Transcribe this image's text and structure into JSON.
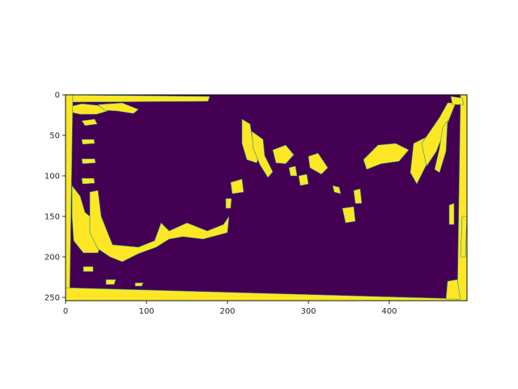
{
  "chart_data": {
    "type": "heatmap",
    "title": "",
    "xlabel": "",
    "ylabel": "",
    "xlim": [
      0,
      496
    ],
    "ylim": [
      254,
      0
    ],
    "x_ticks": [
      0,
      100,
      200,
      300,
      400
    ],
    "y_ticks": [
      0,
      50,
      100,
      150,
      200,
      250
    ],
    "colormap": "viridis",
    "background_color": "#440154",
    "mask_color": "#fde725",
    "edge_color": "#21918c",
    "grid": false,
    "legend": "none",
    "regions": [
      {
        "kind": "band",
        "points": [
          [
            0,
            0
          ],
          [
            178,
            2
          ],
          [
            176,
            8
          ],
          [
            0,
            9
          ]
        ]
      },
      {
        "kind": "band",
        "points": [
          [
            0,
            0
          ],
          [
            9,
            0
          ],
          [
            5,
            254
          ],
          [
            0,
            254
          ]
        ]
      },
      {
        "kind": "band",
        "points": [
          [
            0,
            238
          ],
          [
            496,
            252
          ],
          [
            496,
            254
          ],
          [
            0,
            254
          ]
        ]
      },
      {
        "kind": "band",
        "points": [
          [
            488,
            0
          ],
          [
            496,
            0
          ],
          [
            496,
            254
          ],
          [
            484,
            254
          ]
        ]
      },
      {
        "kind": "blob",
        "points": [
          [
            8,
            14
          ],
          [
            20,
            11
          ],
          [
            40,
            13
          ],
          [
            52,
            20
          ],
          [
            38,
            24
          ],
          [
            18,
            24
          ],
          [
            9,
            22
          ]
        ]
      },
      {
        "kind": "blob",
        "points": [
          [
            40,
            12
          ],
          [
            70,
            10
          ],
          [
            90,
            18
          ],
          [
            84,
            23
          ],
          [
            64,
            20
          ],
          [
            48,
            19
          ]
        ]
      },
      {
        "kind": "blob",
        "points": [
          [
            20,
            32
          ],
          [
            36,
            30
          ],
          [
            39,
            36
          ],
          [
            24,
            38
          ]
        ]
      },
      {
        "kind": "blob",
        "points": [
          [
            20,
            55
          ],
          [
            35,
            55
          ],
          [
            36,
            60
          ],
          [
            21,
            61
          ]
        ]
      },
      {
        "kind": "blob",
        "points": [
          [
            20,
            79
          ],
          [
            36,
            79
          ],
          [
            37,
            84
          ],
          [
            21,
            85
          ]
        ]
      },
      {
        "kind": "blob",
        "points": [
          [
            20,
            103
          ],
          [
            35,
            103
          ],
          [
            36,
            109
          ],
          [
            21,
            110
          ]
        ]
      },
      {
        "kind": "blob",
        "points": [
          [
            8,
            112
          ],
          [
            18,
            125
          ],
          [
            24,
            145
          ],
          [
            36,
            155
          ],
          [
            45,
            180
          ],
          [
            40,
            195
          ],
          [
            22,
            195
          ],
          [
            10,
            180
          ],
          [
            8,
            150
          ]
        ]
      },
      {
        "kind": "blob",
        "points": [
          [
            30,
            120
          ],
          [
            40,
            118
          ],
          [
            44,
            150
          ],
          [
            58,
            185
          ],
          [
            90,
            188
          ],
          [
            110,
            180
          ],
          [
            118,
            158
          ],
          [
            128,
            168
          ],
          [
            150,
            158
          ],
          [
            175,
            168
          ],
          [
            195,
            160
          ],
          [
            202,
            150
          ],
          [
            200,
            170
          ],
          [
            170,
            178
          ],
          [
            145,
            175
          ],
          [
            128,
            178
          ],
          [
            112,
            188
          ],
          [
            90,
            196
          ],
          [
            70,
            206
          ],
          [
            55,
            200
          ],
          [
            40,
            190
          ],
          [
            30,
            170
          ]
        ]
      },
      {
        "kind": "blob",
        "points": [
          [
            198,
            128
          ],
          [
            205,
            128
          ],
          [
            204,
            140
          ],
          [
            198,
            140
          ]
        ]
      },
      {
        "kind": "blob",
        "points": [
          [
            204,
            108
          ],
          [
            218,
            104
          ],
          [
            220,
            120
          ],
          [
            206,
            122
          ]
        ]
      },
      {
        "kind": "blob",
        "points": [
          [
            218,
            30
          ],
          [
            228,
            36
          ],
          [
            232,
            62
          ],
          [
            242,
            70
          ],
          [
            236,
            84
          ],
          [
            224,
            80
          ],
          [
            218,
            60
          ]
        ]
      },
      {
        "kind": "blob",
        "points": [
          [
            230,
            45
          ],
          [
            244,
            55
          ],
          [
            246,
            75
          ],
          [
            256,
            95
          ],
          [
            250,
            102
          ],
          [
            240,
            86
          ],
          [
            232,
            66
          ]
        ]
      },
      {
        "kind": "blob",
        "points": [
          [
            256,
            68
          ],
          [
            272,
            62
          ],
          [
            282,
            74
          ],
          [
            272,
            85
          ],
          [
            260,
            84
          ]
        ]
      },
      {
        "kind": "blob",
        "points": [
          [
            276,
            90
          ],
          [
            284,
            88
          ],
          [
            286,
            100
          ],
          [
            278,
            100
          ]
        ]
      },
      {
        "kind": "blob",
        "points": [
          [
            288,
            100
          ],
          [
            298,
            98
          ],
          [
            300,
            110
          ],
          [
            290,
            112
          ]
        ]
      },
      {
        "kind": "blob",
        "points": [
          [
            300,
            76
          ],
          [
            312,
            72
          ],
          [
            324,
            90
          ],
          [
            316,
            98
          ],
          [
            302,
            90
          ]
        ]
      },
      {
        "kind": "blob",
        "points": [
          [
            330,
            112
          ],
          [
            338,
            114
          ],
          [
            340,
            122
          ],
          [
            332,
            120
          ]
        ]
      },
      {
        "kind": "blob",
        "points": [
          [
            342,
            140
          ],
          [
            356,
            138
          ],
          [
            358,
            156
          ],
          [
            346,
            158
          ]
        ]
      },
      {
        "kind": "blob",
        "points": [
          [
            356,
            118
          ],
          [
            364,
            116
          ],
          [
            366,
            134
          ],
          [
            358,
            134
          ]
        ]
      },
      {
        "kind": "blob",
        "points": [
          [
            368,
            80
          ],
          [
            386,
            62
          ],
          [
            408,
            60
          ],
          [
            424,
            68
          ],
          [
            412,
            82
          ],
          [
            390,
            85
          ],
          [
            372,
            92
          ]
        ]
      },
      {
        "kind": "blob",
        "points": [
          [
            430,
            60
          ],
          [
            446,
            52
          ],
          [
            452,
            72
          ],
          [
            444,
            90
          ],
          [
            434,
            110
          ],
          [
            426,
            96
          ]
        ]
      },
      {
        "kind": "blob",
        "points": [
          [
            440,
            60
          ],
          [
            462,
            28
          ],
          [
            472,
            10
          ],
          [
            482,
            10
          ],
          [
            470,
            40
          ],
          [
            458,
            70
          ],
          [
            446,
            88
          ]
        ]
      },
      {
        "kind": "blob",
        "points": [
          [
            466,
            40
          ],
          [
            472,
            32
          ],
          [
            470,
            70
          ],
          [
            462,
            96
          ],
          [
            456,
            92
          ],
          [
            462,
            66
          ]
        ]
      },
      {
        "kind": "blob",
        "points": [
          [
            476,
            2
          ],
          [
            490,
            4
          ],
          [
            492,
            12
          ],
          [
            478,
            12
          ]
        ]
      },
      {
        "kind": "blob",
        "points": [
          [
            474,
            136
          ],
          [
            480,
            134
          ],
          [
            480,
            160
          ],
          [
            474,
            160
          ]
        ]
      },
      {
        "kind": "blob",
        "points": [
          [
            490,
            150
          ],
          [
            496,
            150
          ],
          [
            494,
            200
          ],
          [
            488,
            200
          ]
        ]
      },
      {
        "kind": "blob",
        "points": [
          [
            472,
            230
          ],
          [
            484,
            228
          ],
          [
            488,
            252
          ],
          [
            470,
            252
          ]
        ]
      },
      {
        "kind": "blob",
        "points": [
          [
            22,
            212
          ],
          [
            34,
            212
          ],
          [
            34,
            218
          ],
          [
            22,
            218
          ]
        ]
      },
      {
        "kind": "blob",
        "points": [
          [
            50,
            228
          ],
          [
            62,
            228
          ],
          [
            60,
            234
          ],
          [
            50,
            234
          ]
        ]
      },
      {
        "kind": "blob",
        "points": [
          [
            86,
            232
          ],
          [
            96,
            232
          ],
          [
            94,
            236
          ],
          [
            86,
            236
          ]
        ]
      }
    ]
  }
}
